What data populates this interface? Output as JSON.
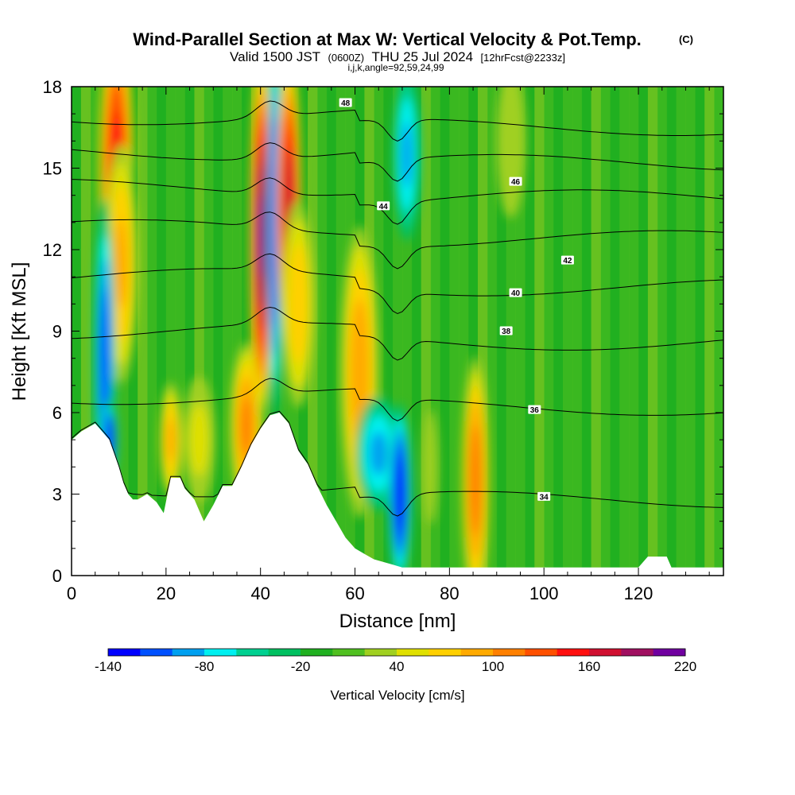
{
  "title": {
    "main": "Wind-Parallel Section at Max W: Vertical Velocity & Pot.Temp.",
    "copyright": "(C)",
    "valid_prefix": "Valid 1500 JST",
    "valid_utc": "(0600Z)",
    "valid_date": "THU 25 Jul 2024",
    "forecast": "[12hrFcst@2233z]",
    "params": "i,j,k,angle=92,59,24,99"
  },
  "chart_data": {
    "type": "heatmap",
    "xlabel": "Distance [nm]",
    "ylabel": "Height [Kft MSL]",
    "xlim": [
      0,
      138
    ],
    "ylim": [
      0,
      18
    ],
    "x_ticks": [
      0,
      20,
      40,
      60,
      80,
      100,
      120
    ],
    "y_ticks": [
      0,
      3,
      6,
      9,
      12,
      15,
      18
    ],
    "terrain_kft": [
      [
        0,
        5.0
      ],
      [
        2,
        5.3
      ],
      [
        5,
        5.6
      ],
      [
        8,
        5.0
      ],
      [
        10,
        4.0
      ],
      [
        11,
        3.4
      ],
      [
        12,
        3.0
      ],
      [
        13,
        2.8
      ],
      [
        14,
        2.8
      ],
      [
        16,
        3.0
      ],
      [
        18,
        2.7
      ],
      [
        19.5,
        2.3
      ],
      [
        21,
        3.6
      ],
      [
        23,
        3.6
      ],
      [
        24,
        3.2
      ],
      [
        26,
        2.8
      ],
      [
        28,
        2.0
      ],
      [
        30,
        2.6
      ],
      [
        32,
        3.3
      ],
      [
        34,
        3.3
      ],
      [
        36,
        4.0
      ],
      [
        38,
        4.8
      ],
      [
        40,
        5.4
      ],
      [
        42,
        5.9
      ],
      [
        44,
        6.0
      ],
      [
        46,
        5.6
      ],
      [
        48,
        4.6
      ],
      [
        50,
        4.1
      ],
      [
        52,
        3.3
      ],
      [
        54,
        2.6
      ],
      [
        56,
        2.0
      ],
      [
        58,
        1.4
      ],
      [
        60,
        1.0
      ],
      [
        62,
        0.8
      ],
      [
        64,
        0.6
      ],
      [
        66,
        0.5
      ],
      [
        68,
        0.4
      ],
      [
        70,
        0.3
      ],
      [
        72,
        0.3
      ],
      [
        74,
        0.3
      ],
      [
        120,
        0.3
      ],
      [
        122,
        0.7
      ],
      [
        126,
        0.7
      ],
      [
        127,
        0.3
      ],
      [
        138,
        0.3
      ]
    ],
    "w_features_cms": [
      {
        "x": 9.5,
        "y": 15.0,
        "w": 150,
        "sx": 1.8,
        "sy": 3.0
      },
      {
        "x": 10.5,
        "y": 11.5,
        "w": 80,
        "sx": 1.8,
        "sy": 2.5
      },
      {
        "x": 7.0,
        "y": 8.0,
        "w": -110,
        "sx": 1.1,
        "sy": 3.2
      },
      {
        "x": 8.0,
        "y": 5.0,
        "w": -140,
        "sx": 0.8,
        "sy": 0.8
      },
      {
        "x": 21.0,
        "y": 5.0,
        "w": 80,
        "sx": 1.2,
        "sy": 1.2
      },
      {
        "x": 27.0,
        "y": 5.0,
        "w": 40,
        "sx": 2.0,
        "sy": 1.5
      },
      {
        "x": 37.0,
        "y": 5.5,
        "w": 100,
        "sx": 1.7,
        "sy": 1.7
      },
      {
        "x": 40.2,
        "y": 12.5,
        "w": 200,
        "sx": 1.2,
        "sy": 3.5
      },
      {
        "x": 43.0,
        "y": 13.0,
        "w": -120,
        "sx": 0.8,
        "sy": 4.0
      },
      {
        "x": 46.0,
        "y": 13.5,
        "w": 175,
        "sx": 1.3,
        "sy": 3.0
      },
      {
        "x": 48.0,
        "y": 10.0,
        "w": 70,
        "sx": 1.8,
        "sy": 2.2
      },
      {
        "x": 61.0,
        "y": 7.5,
        "w": 90,
        "sx": 2.0,
        "sy": 3.0
      },
      {
        "x": 65.0,
        "y": 4.5,
        "w": -80,
        "sx": 2.5,
        "sy": 1.2
      },
      {
        "x": 69.5,
        "y": 3.0,
        "w": -135,
        "sx": 1.2,
        "sy": 1.8
      },
      {
        "x": 71.0,
        "y": 15.5,
        "w": -80,
        "sx": 1.5,
        "sy": 1.8
      },
      {
        "x": 85.5,
        "y": 3.5,
        "w": 110,
        "sx": 1.4,
        "sy": 2.5
      },
      {
        "x": 76.0,
        "y": 4.0,
        "w": 30,
        "sx": 1.0,
        "sy": 1.5
      },
      {
        "x": 93.0,
        "y": 16.0,
        "w": 30,
        "sx": 2.0,
        "sy": 2.0
      }
    ],
    "isentropes": [
      {
        "label": "34",
        "z_left": 3.2,
        "label_x": 100,
        "label_kft": 2.9
      },
      {
        "label": "36",
        "z_left": 6.6,
        "label_x": 98,
        "label_kft": 6.1
      },
      {
        "label": "38",
        "z_left": 9.0,
        "label_x": 92,
        "label_kft": 9.0
      },
      {
        "label": "40",
        "z_left": 11.0,
        "label_x": 94,
        "label_kft": 10.4
      },
      {
        "label": "42",
        "z_left": 12.8,
        "label_x": 105,
        "label_kft": 11.6
      },
      {
        "label": "44",
        "z_left": 14.3,
        "label_x": 66,
        "label_kft": 13.6
      },
      {
        "label": "46",
        "z_left": 15.6,
        "label_x": 94,
        "label_kft": 14.5
      },
      {
        "label": "48",
        "z_left": 16.9,
        "label_x": 58,
        "label_kft": 17.4
      }
    ],
    "colorbar": {
      "label": "Vertical Velocity [cm/s]",
      "min": -140,
      "max": 220,
      "step": 20,
      "tick_labels": [
        "-140",
        "-80",
        "-20",
        "40",
        "100",
        "160",
        "220"
      ],
      "colors": [
        "#0000ff",
        "#0050ff",
        "#00a0f0",
        "#00f0f0",
        "#00d090",
        "#00c060",
        "#20b020",
        "#50c020",
        "#a0d020",
        "#e0e000",
        "#ffd000",
        "#ffaa00",
        "#ff8000",
        "#ff5000",
        "#ff1010",
        "#d01030",
        "#a01060",
        "#7000a0"
      ]
    }
  }
}
